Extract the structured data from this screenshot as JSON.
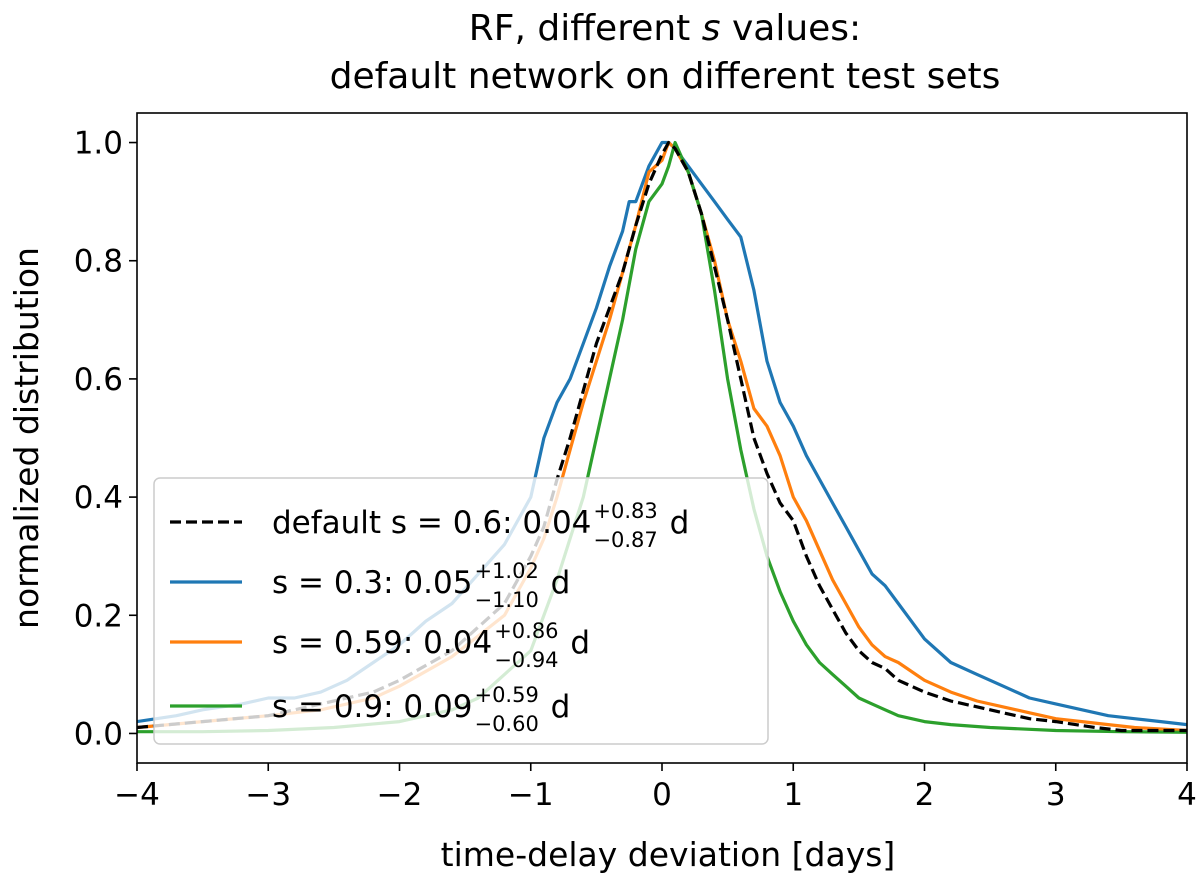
{
  "chart_data": {
    "type": "line",
    "title": {
      "line1_before": "RF, different ",
      "line1_italic": "s",
      "line1_after": " values:",
      "line2": "default network on different test sets"
    },
    "xlabel": "time-delay deviation [days]",
    "ylabel": "normalized distribution",
    "xlim": [
      -4,
      4
    ],
    "ylim": [
      -0.05,
      1.05
    ],
    "xticks": [
      -4,
      -3,
      -2,
      -1,
      0,
      1,
      2,
      3,
      4
    ],
    "xtick_labels": [
      "−4",
      "−3",
      "−2",
      "−1",
      "0",
      "1",
      "2",
      "3",
      "4"
    ],
    "yticks": [
      0.0,
      0.2,
      0.4,
      0.6,
      0.8,
      1.0
    ],
    "ytick_labels": [
      "0.0",
      "0.2",
      "0.4",
      "0.6",
      "0.8",
      "1.0"
    ],
    "grid": false,
    "legend_position": "lower-left",
    "series": [
      {
        "key": "default",
        "name": "default s = 0.6: 0.04 (+0.83 / −0.87) d",
        "legend": {
          "prefix": "default s = 0.6: 0.04",
          "sup": "+0.83",
          "sub": "−0.87",
          "suffix": " d"
        },
        "color": "#000000",
        "dash": "dashed",
        "x": [
          -4.0,
          -3.5,
          -3.0,
          -2.6,
          -2.2,
          -2.0,
          -1.6,
          -1.2,
          -1.0,
          -0.9,
          -0.8,
          -0.7,
          -0.6,
          -0.5,
          -0.4,
          -0.3,
          -0.2,
          -0.1,
          0.0,
          0.05,
          0.1,
          0.2,
          0.3,
          0.4,
          0.5,
          0.6,
          0.7,
          0.8,
          0.9,
          1.0,
          1.1,
          1.2,
          1.3,
          1.4,
          1.5,
          1.6,
          1.7,
          1.8,
          2.0,
          2.2,
          2.5,
          2.8,
          3.0,
          3.3,
          3.5,
          4.0
        ],
        "y": [
          0.01,
          0.02,
          0.03,
          0.05,
          0.07,
          0.09,
          0.14,
          0.22,
          0.3,
          0.35,
          0.43,
          0.5,
          0.58,
          0.66,
          0.72,
          0.78,
          0.86,
          0.93,
          0.98,
          1.0,
          0.99,
          0.95,
          0.88,
          0.79,
          0.7,
          0.6,
          0.5,
          0.44,
          0.39,
          0.36,
          0.3,
          0.25,
          0.21,
          0.17,
          0.14,
          0.12,
          0.11,
          0.09,
          0.07,
          0.055,
          0.04,
          0.025,
          0.02,
          0.01,
          0.005,
          0.005
        ]
      },
      {
        "key": "s03",
        "name": "s = 0.3: 0.05 (+1.02 / −1.10) d",
        "legend": {
          "prefix": "s = 0.3: 0.05",
          "sup": "+1.02",
          "sub": "−1.10",
          "suffix": " d"
        },
        "color": "#1f77b4",
        "dash": "solid",
        "x": [
          -4.0,
          -3.7,
          -3.5,
          -3.2,
          -3.0,
          -2.8,
          -2.6,
          -2.4,
          -2.2,
          -2.0,
          -1.8,
          -1.6,
          -1.4,
          -1.2,
          -1.0,
          -0.9,
          -0.8,
          -0.7,
          -0.6,
          -0.5,
          -0.4,
          -0.3,
          -0.25,
          -0.2,
          -0.1,
          0.0,
          0.05,
          0.1,
          0.2,
          0.3,
          0.4,
          0.5,
          0.6,
          0.7,
          0.8,
          0.9,
          1.0,
          1.1,
          1.2,
          1.3,
          1.4,
          1.5,
          1.6,
          1.7,
          1.8,
          1.9,
          2.0,
          2.2,
          2.4,
          2.6,
          2.8,
          3.0,
          3.2,
          3.4,
          3.6,
          3.8,
          4.0
        ],
        "y": [
          0.02,
          0.03,
          0.04,
          0.05,
          0.06,
          0.06,
          0.07,
          0.09,
          0.12,
          0.15,
          0.19,
          0.22,
          0.27,
          0.32,
          0.4,
          0.5,
          0.56,
          0.6,
          0.66,
          0.72,
          0.79,
          0.85,
          0.9,
          0.9,
          0.96,
          1.0,
          1.0,
          0.99,
          0.96,
          0.93,
          0.9,
          0.87,
          0.84,
          0.75,
          0.63,
          0.56,
          0.52,
          0.47,
          0.43,
          0.39,
          0.35,
          0.31,
          0.27,
          0.25,
          0.22,
          0.19,
          0.16,
          0.12,
          0.1,
          0.08,
          0.06,
          0.05,
          0.04,
          0.03,
          0.025,
          0.02,
          0.015
        ]
      },
      {
        "key": "s059",
        "name": "s = 0.59: 0.04 (+0.86 / −0.94) d",
        "legend": {
          "prefix": "s = 0.59: 0.04",
          "sup": "+0.86",
          "sub": "−0.94",
          "suffix": " d"
        },
        "color": "#ff7f0e",
        "dash": "solid",
        "x": [
          -4.0,
          -3.5,
          -3.0,
          -2.6,
          -2.2,
          -2.0,
          -1.6,
          -1.2,
          -1.0,
          -0.9,
          -0.8,
          -0.7,
          -0.6,
          -0.5,
          -0.4,
          -0.3,
          -0.2,
          -0.1,
          0.0,
          0.05,
          0.1,
          0.2,
          0.3,
          0.4,
          0.5,
          0.6,
          0.7,
          0.8,
          0.9,
          1.0,
          1.1,
          1.2,
          1.3,
          1.4,
          1.5,
          1.6,
          1.7,
          1.8,
          2.0,
          2.2,
          2.4,
          2.6,
          2.8,
          3.0,
          3.2,
          3.4,
          3.6,
          4.0
        ],
        "y": [
          0.01,
          0.02,
          0.03,
          0.04,
          0.06,
          0.08,
          0.13,
          0.2,
          0.28,
          0.33,
          0.4,
          0.48,
          0.56,
          0.63,
          0.7,
          0.78,
          0.86,
          0.95,
          0.97,
          1.0,
          0.99,
          0.95,
          0.88,
          0.8,
          0.7,
          0.63,
          0.55,
          0.52,
          0.47,
          0.4,
          0.36,
          0.31,
          0.26,
          0.22,
          0.18,
          0.15,
          0.13,
          0.12,
          0.09,
          0.07,
          0.055,
          0.045,
          0.035,
          0.025,
          0.02,
          0.015,
          0.01,
          0.005
        ]
      },
      {
        "key": "s09",
        "name": "s = 0.9: 0.09 (+0.59 / −0.60) d",
        "legend": {
          "prefix": "s = 0.9: 0.09",
          "sup": "+0.59",
          "sub": "−0.60",
          "suffix": " d"
        },
        "color": "#2ca02c",
        "dash": "solid",
        "x": [
          -4.0,
          -3.5,
          -3.0,
          -2.5,
          -2.0,
          -1.8,
          -1.6,
          -1.4,
          -1.2,
          -1.0,
          -0.9,
          -0.8,
          -0.7,
          -0.6,
          -0.5,
          -0.4,
          -0.3,
          -0.2,
          -0.1,
          0.0,
          0.05,
          0.1,
          0.2,
          0.3,
          0.4,
          0.5,
          0.6,
          0.7,
          0.8,
          0.9,
          1.0,
          1.1,
          1.2,
          1.3,
          1.4,
          1.5,
          1.6,
          1.7,
          1.8,
          2.0,
          2.2,
          2.5,
          3.0,
          3.5,
          4.0
        ],
        "y": [
          0.003,
          0.003,
          0.005,
          0.01,
          0.02,
          0.03,
          0.04,
          0.06,
          0.1,
          0.14,
          0.2,
          0.26,
          0.33,
          0.4,
          0.5,
          0.6,
          0.7,
          0.82,
          0.9,
          0.93,
          0.96,
          1.0,
          0.95,
          0.88,
          0.75,
          0.6,
          0.48,
          0.38,
          0.3,
          0.24,
          0.19,
          0.15,
          0.12,
          0.1,
          0.08,
          0.06,
          0.05,
          0.04,
          0.03,
          0.02,
          0.015,
          0.01,
          0.005,
          0.003,
          0.002
        ]
      }
    ]
  }
}
